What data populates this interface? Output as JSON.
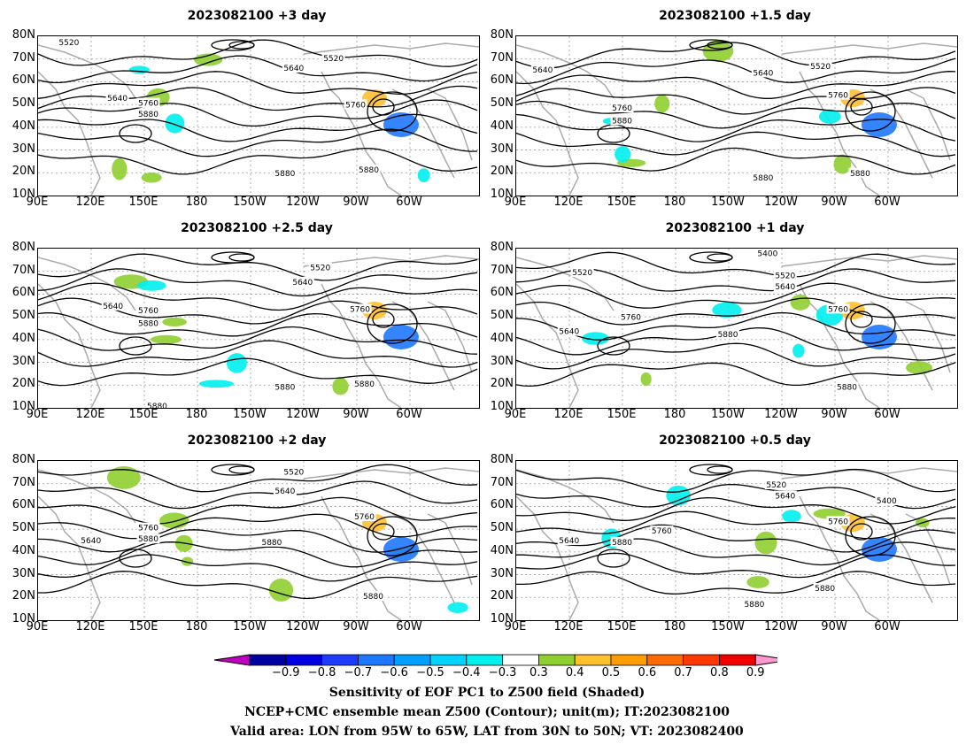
{
  "panels": [
    {
      "title": "2023082100  +3 day",
      "labels": [
        [
          "5520",
          0.07,
          0.04
        ],
        [
          "5520",
          0.67,
          0.14
        ],
        [
          "5640",
          0.58,
          0.2
        ],
        [
          "5640",
          0.18,
          0.39
        ],
        [
          "5760",
          0.25,
          0.42
        ],
        [
          "5880",
          0.25,
          0.49
        ],
        [
          "5760",
          0.72,
          0.43
        ],
        [
          "5880",
          0.56,
          0.86
        ],
        [
          "5880",
          0.75,
          0.84
        ]
      ]
    },
    {
      "title": "2023082100  +1.5 day",
      "labels": [
        [
          "5640",
          0.06,
          0.21
        ],
        [
          "5640",
          0.56,
          0.23
        ],
        [
          "5520",
          0.69,
          0.19
        ],
        [
          "5760",
          0.24,
          0.45
        ],
        [
          "5880",
          0.24,
          0.53
        ],
        [
          "5760",
          0.73,
          0.37
        ],
        [
          "5880",
          0.56,
          0.89
        ],
        [
          "5880",
          0.78,
          0.86
        ]
      ]
    },
    {
      "title": "2023082100  +2.5 day",
      "labels": [
        [
          "5520",
          0.64,
          0.12
        ],
        [
          "5640",
          0.6,
          0.21
        ],
        [
          "5640",
          0.17,
          0.36
        ],
        [
          "5760",
          0.25,
          0.39
        ],
        [
          "5880",
          0.25,
          0.47
        ],
        [
          "5760",
          0.73,
          0.38
        ],
        [
          "5880",
          0.56,
          0.87
        ],
        [
          "5880",
          0.74,
          0.85
        ],
        [
          "5880",
          0.27,
          0.99
        ]
      ]
    },
    {
      "title": "2023082100  +1 day",
      "labels": [
        [
          "5520",
          0.15,
          0.15
        ],
        [
          "5400",
          0.57,
          0.03
        ],
        [
          "5520",
          0.61,
          0.17
        ],
        [
          "5640",
          0.61,
          0.24
        ],
        [
          "5760",
          0.26,
          0.43
        ],
        [
          "5640",
          0.12,
          0.52
        ],
        [
          "5880",
          0.48,
          0.54
        ],
        [
          "5760",
          0.73,
          0.38
        ],
        [
          "5880",
          0.75,
          0.87
        ]
      ]
    },
    {
      "title": "2023082100  +2 day",
      "labels": [
        [
          "5520",
          0.58,
          0.07
        ],
        [
          "5640",
          0.56,
          0.19
        ],
        [
          "5760",
          0.25,
          0.42
        ],
        [
          "5880",
          0.25,
          0.49
        ],
        [
          "5640",
          0.12,
          0.5
        ],
        [
          "5760",
          0.74,
          0.35
        ],
        [
          "5880",
          0.53,
          0.51
        ],
        [
          "5880",
          0.76,
          0.85
        ]
      ]
    },
    {
      "title": "2023082100  +0.5 day",
      "labels": [
        [
          "5520",
          0.59,
          0.15
        ],
        [
          "5640",
          0.61,
          0.22
        ],
        [
          "5400",
          0.84,
          0.25
        ],
        [
          "5760",
          0.73,
          0.38
        ],
        [
          "5760",
          0.33,
          0.44
        ],
        [
          "5640",
          0.12,
          0.5
        ],
        [
          "5880",
          0.24,
          0.51
        ],
        [
          "5880",
          0.7,
          0.8
        ],
        [
          "5880",
          0.54,
          0.9
        ]
      ]
    }
  ],
  "lat_labels": [
    "80N",
    "70N",
    "60N",
    "50N",
    "40N",
    "30N",
    "20N",
    "10N"
  ],
  "lon_labels": [
    "90E",
    "120E",
    "150E",
    "180",
    "150W",
    "120W",
    "90W",
    "60W"
  ],
  "colorbar": {
    "ticks": [
      "−0.9",
      "−0.8",
      "−0.7",
      "−0.6",
      "−0.5",
      "−0.4",
      "−0.3",
      "0.3",
      "0.4",
      "0.5",
      "0.6",
      "0.7",
      "0.8",
      "0.9"
    ],
    "colors": [
      "#c000c0",
      "#0000a0",
      "#0000e0",
      "#1e3cff",
      "#1e78ff",
      "#00a0ff",
      "#00d2ff",
      "#00f0f0",
      "#ffffff",
      "#8fcf30",
      "#ffc030",
      "#ff9c00",
      "#ff6a00",
      "#ff3800",
      "#f00000",
      "#ff9ad0"
    ]
  },
  "caption": {
    "line1": "Sensitivity of EOF PC1 to Z500 field (Shaded)",
    "line2": "NCEP+CMC ensemble mean Z500 (Contour); unit(m); IT:2023082100",
    "line3": "Valid area: LON from 95W to 65W, LAT from 30N to 50N; VT: 2023082400"
  }
}
